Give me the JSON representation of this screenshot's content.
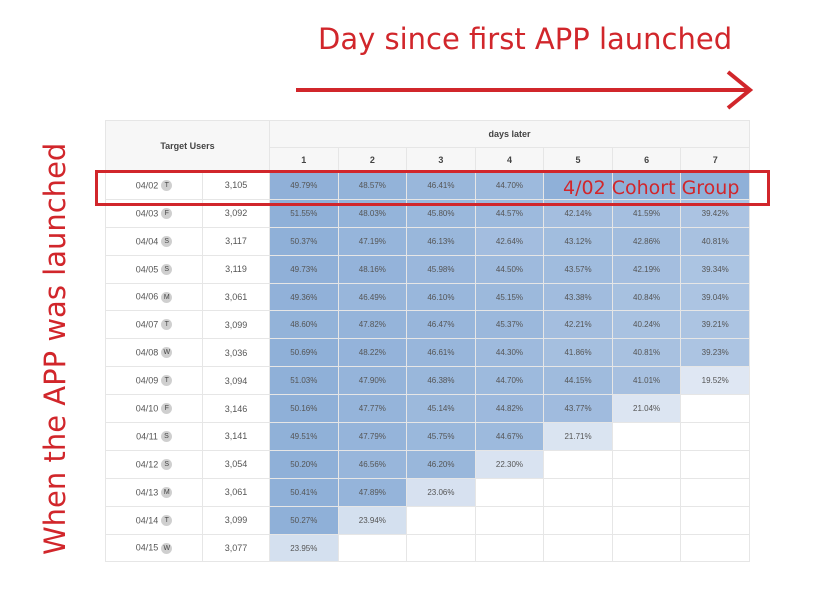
{
  "annotations": {
    "top_title": "Day since first APP launched",
    "side_title": "When the APP was launched",
    "highlight_label": "4/02 Cohort Group",
    "accent_color": "#d1262b"
  },
  "chart_data": {
    "type": "table",
    "header_left": "Target Users",
    "header_right": "days later",
    "days": [
      "1",
      "2",
      "3",
      "4",
      "5",
      "6",
      "7"
    ],
    "rows": [
      {
        "date": "04/02",
        "day": "T",
        "users": "3,105",
        "values": [
          "49.79%",
          "48.57%",
          "46.41%",
          "44.70%",
          "",
          "",
          ""
        ]
      },
      {
        "date": "04/03",
        "day": "F",
        "users": "3,092",
        "values": [
          "51.55%",
          "48.03%",
          "45.80%",
          "44.57%",
          "42.14%",
          "41.59%",
          "39.42%"
        ]
      },
      {
        "date": "04/04",
        "day": "S",
        "users": "3,117",
        "values": [
          "50.37%",
          "47.19%",
          "46.13%",
          "42.64%",
          "43.12%",
          "42.86%",
          "40.81%"
        ]
      },
      {
        "date": "04/05",
        "day": "S",
        "users": "3,119",
        "values": [
          "49.73%",
          "48.16%",
          "45.98%",
          "44.50%",
          "43.57%",
          "42.19%",
          "39.34%"
        ]
      },
      {
        "date": "04/06",
        "day": "M",
        "users": "3,061",
        "values": [
          "49.36%",
          "46.49%",
          "46.10%",
          "45.15%",
          "43.38%",
          "40.84%",
          "39.04%"
        ]
      },
      {
        "date": "04/07",
        "day": "T",
        "users": "3,099",
        "values": [
          "48.60%",
          "47.82%",
          "46.47%",
          "45.37%",
          "42.21%",
          "40.24%",
          "39.21%"
        ]
      },
      {
        "date": "04/08",
        "day": "W",
        "users": "3,036",
        "values": [
          "50.69%",
          "48.22%",
          "46.61%",
          "44.30%",
          "41.86%",
          "40.81%",
          "39.23%"
        ]
      },
      {
        "date": "04/09",
        "day": "T",
        "users": "3,094",
        "values": [
          "51.03%",
          "47.90%",
          "46.38%",
          "44.70%",
          "44.15%",
          "41.01%",
          "19.52%"
        ]
      },
      {
        "date": "04/10",
        "day": "F",
        "users": "3,146",
        "values": [
          "50.16%",
          "47.77%",
          "45.14%",
          "44.82%",
          "43.77%",
          "21.04%",
          null
        ]
      },
      {
        "date": "04/11",
        "day": "S",
        "users": "3,141",
        "values": [
          "49.51%",
          "47.79%",
          "45.75%",
          "44.67%",
          "21.71%",
          null,
          null
        ]
      },
      {
        "date": "04/12",
        "day": "S",
        "users": "3,054",
        "values": [
          "50.20%",
          "46.56%",
          "46.20%",
          "22.30%",
          null,
          null,
          null
        ]
      },
      {
        "date": "04/13",
        "day": "M",
        "users": "3,061",
        "values": [
          "50.41%",
          "47.89%",
          "23.06%",
          null,
          null,
          null,
          null
        ]
      },
      {
        "date": "04/14",
        "day": "T",
        "users": "3,099",
        "values": [
          "50.27%",
          "23.94%",
          null,
          null,
          null,
          null,
          null
        ]
      },
      {
        "date": "04/15",
        "day": "W",
        "users": "3,077",
        "values": [
          "23.95%",
          null,
          null,
          null,
          null,
          null,
          null
        ]
      }
    ],
    "color_scale": {
      "high": "#8fb0d8",
      "low": "#dfe7f3"
    }
  }
}
